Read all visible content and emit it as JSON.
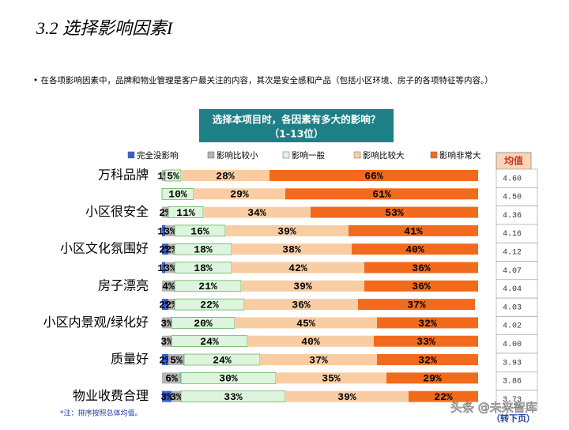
{
  "header": {
    "title": "3.2 选择影响因素I",
    "bullet": "• 在各项影响因素中，品牌和物业管理是客户最关注的内容，其次是安全感和产品（包括小区环境、房子的各项特征等内容。）"
  },
  "question": {
    "line1": "选择本项目时，各因素有多大的影响？",
    "line2": "（1-13位）"
  },
  "chart_data": {
    "type": "stacked-hbar",
    "categories": [
      "万科品牌",
      null,
      "小区很安全",
      null,
      "小区文化氛围好",
      null,
      "房子漂亮",
      null,
      "小区内景观/绿化好",
      null,
      "质量好",
      null,
      "物业收费合理"
    ],
    "xlim": [
      0,
      100
    ],
    "series": [
      {
        "name": "完全没影响",
        "color": "#3a5fcd",
        "values": [
          0,
          0,
          0,
          1,
          2,
          1,
          0,
          2,
          0,
          0,
          2,
          0,
          3
        ],
        "value_labels": [
          null,
          null,
          null,
          "1%",
          "2%",
          "1%",
          null,
          "2%",
          null,
          null,
          "2%",
          null,
          "3%"
        ]
      },
      {
        "name": "影响比较小",
        "color": "#b4b4b4",
        "values": [
          1,
          0,
          2,
          3,
          2,
          3,
          4,
          2,
          3,
          3,
          5,
          6,
          3
        ],
        "value_labels": [
          "1%",
          null,
          "2%",
          "3%",
          "2%",
          "3%",
          "4%",
          "2%",
          "3%",
          "3%",
          "5%",
          "6%",
          "3%"
        ]
      },
      {
        "name": "影响一般",
        "color": "#dcf5dc",
        "values": [
          5,
          10,
          11,
          16,
          18,
          18,
          21,
          22,
          20,
          24,
          24,
          30,
          33
        ],
        "value_labels": [
          "5%",
          "10%",
          "11%",
          "16%",
          "18%",
          "18%",
          "21%",
          "22%",
          "20%",
          "24%",
          "24%",
          "30%",
          "33%"
        ]
      },
      {
        "name": "影响比较大",
        "color": "#f9cda3",
        "values": [
          28,
          29,
          34,
          39,
          38,
          42,
          39,
          36,
          45,
          40,
          37,
          35,
          39
        ],
        "value_labels": [
          "28%",
          "29%",
          "34%",
          "39%",
          "38%",
          "42%",
          "39%",
          "36%",
          "45%",
          "40%",
          "37%",
          "35%",
          "39%"
        ]
      },
      {
        "name": "影响非常大",
        "color": "#f26b1d",
        "values": [
          66,
          61,
          53,
          41,
          40,
          36,
          36,
          37,
          32,
          33,
          32,
          29,
          22
        ],
        "value_labels": [
          "66%",
          "61%",
          "53%",
          "41%",
          "40%",
          "36%",
          "36%",
          "37%",
          "32%",
          "33%",
          "32%",
          "29%",
          "22%"
        ]
      }
    ]
  },
  "mean_table": {
    "header": "均值",
    "rows": [
      "4.60",
      "4.50",
      "4.36",
      "4.16",
      "4.12",
      "4.07",
      "4.04",
      "4.03",
      "4.02",
      "4.00",
      "3.93",
      "3.86",
      "3.73"
    ]
  },
  "footer": {
    "note": "*注：排序按照总体均值。",
    "next": "（转下页）",
    "watermark": "头条 @未来智库"
  }
}
